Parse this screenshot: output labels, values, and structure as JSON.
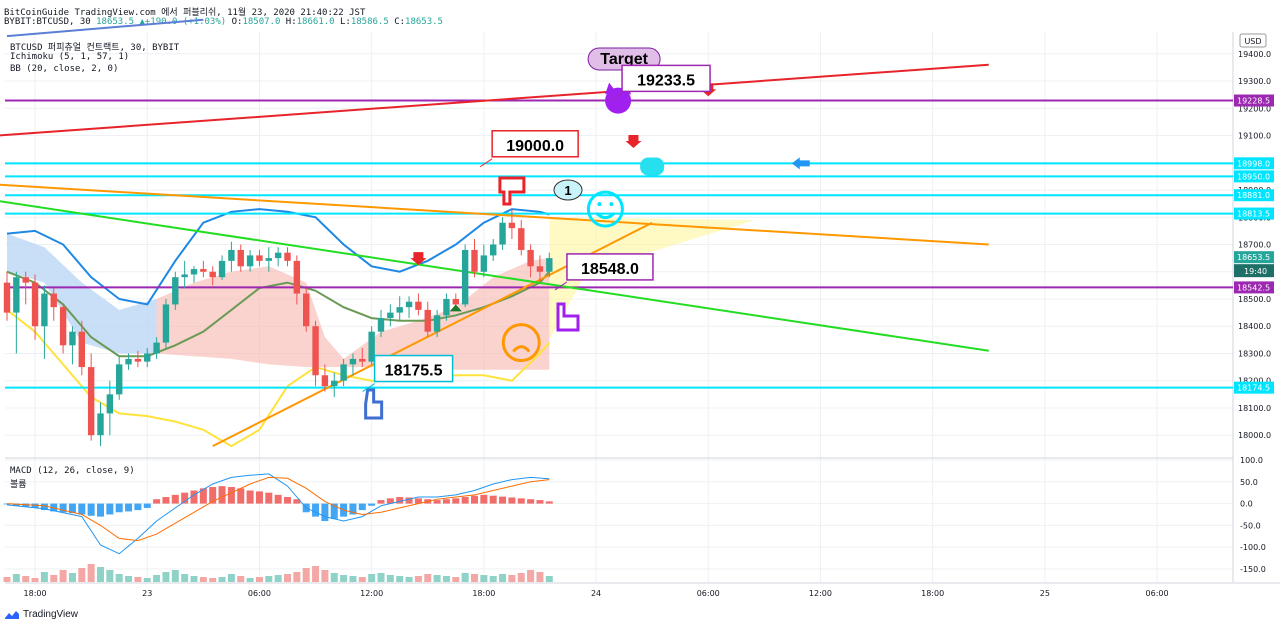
{
  "header": {
    "publish_line": "BitCoinGuide TradingView.com 에서 퍼블리쉬, 11월 23, 2020 21:40:22 JST",
    "symbol_line": "BYBIT:BTCUSD, 30",
    "change": "18653.5 ▲+190.0 (+1.03%)",
    "ohlc": [
      {
        "label": "O:",
        "value": "18507.0"
      },
      {
        "label": "H:",
        "value": "18661.0"
      },
      {
        "label": "L:",
        "value": "18586.5"
      },
      {
        "label": "C:",
        "value": "18653.5"
      }
    ]
  },
  "indicators": {
    "main_title": "BTCUSD 퍼피츄얼 컨트랙트, 30, BYBIT",
    "ichimoku": "Ichimoku (5, 1, 57, 1)",
    "bb": "BB (20, close, 2, 0)",
    "macd": "MACD (12, 26, close, 9)",
    "volume": "볼륨"
  },
  "colors": {
    "up": "#26a69a",
    "down": "#ef5350",
    "red_line": "#e8232a",
    "purple_line": "#9c27b0",
    "cyan_line": "#00e5ff",
    "orange_line": "#ff9800",
    "green_line": "#22dd22",
    "bb_blue": "#1e88e5",
    "bb_yellow": "#ffe23a",
    "bb_mid": "#6a9a55",
    "macd_line": "#2196f3",
    "signal_line": "#ff6d00"
  },
  "chart_data": {
    "type": "candlestick",
    "currency_label": "USD",
    "price_axis": {
      "range": [
        17920,
        19480
      ],
      "ticks": [
        18000.0,
        18100.0,
        18200.0,
        18300.0,
        18400.0,
        18500.0,
        18600.0,
        18700.0,
        18800.0,
        18900.0,
        19000.0,
        19100.0,
        19200.0,
        19300.0,
        19400.0
      ]
    },
    "macd_axis": {
      "range": [
        -180,
        100
      ],
      "ticks": [
        "100.0",
        "50.0",
        "0.0",
        "-50.0",
        "-100.0",
        "-150.0"
      ]
    },
    "time_axis": {
      "labels": [
        {
          "bar": 3,
          "text": "18:00"
        },
        {
          "bar": 15,
          "text": "23"
        },
        {
          "bar": 27,
          "text": "06:00"
        },
        {
          "bar": 39,
          "text": "12:00"
        },
        {
          "bar": 51,
          "text": "18:00"
        },
        {
          "bar": 63,
          "text": "24"
        },
        {
          "bar": 75,
          "text": "06:00"
        },
        {
          "bar": 87,
          "text": "12:00"
        },
        {
          "bar": 99,
          "text": "18:00"
        },
        {
          "bar": 111,
          "text": "25"
        },
        {
          "bar": 123,
          "text": "06:00"
        }
      ]
    },
    "candles": [
      [
        18560,
        18600,
        18420,
        18450
      ],
      [
        18450,
        18600,
        18300,
        18580
      ],
      [
        18580,
        18600,
        18480,
        18560
      ],
      [
        18560,
        18590,
        18350,
        18400
      ],
      [
        18400,
        18550,
        18280,
        18520
      ],
      [
        18520,
        18540,
        18420,
        18470
      ],
      [
        18470,
        18480,
        18300,
        18330
      ],
      [
        18330,
        18400,
        18260,
        18380
      ],
      [
        18380,
        18420,
        18220,
        18250
      ],
      [
        18250,
        18300,
        17980,
        18000
      ],
      [
        18000,
        18120,
        17960,
        18080
      ],
      [
        18080,
        18200,
        18000,
        18150
      ],
      [
        18150,
        18290,
        18130,
        18260
      ],
      [
        18260,
        18300,
        18240,
        18280
      ],
      [
        18280,
        18310,
        18250,
        18270
      ],
      [
        18270,
        18320,
        18250,
        18300
      ],
      [
        18300,
        18360,
        18280,
        18340
      ],
      [
        18340,
        18500,
        18320,
        18480
      ],
      [
        18480,
        18600,
        18460,
        18580
      ],
      [
        18580,
        18640,
        18540,
        18590
      ],
      [
        18590,
        18620,
        18560,
        18610
      ],
      [
        18610,
        18640,
        18580,
        18600
      ],
      [
        18600,
        18620,
        18550,
        18580
      ],
      [
        18580,
        18660,
        18570,
        18640
      ],
      [
        18640,
        18710,
        18600,
        18680
      ],
      [
        18680,
        18700,
        18600,
        18620
      ],
      [
        18620,
        18680,
        18600,
        18660
      ],
      [
        18660,
        18680,
        18620,
        18640
      ],
      [
        18640,
        18690,
        18600,
        18650
      ],
      [
        18650,
        18690,
        18620,
        18670
      ],
      [
        18670,
        18690,
        18620,
        18640
      ],
      [
        18640,
        18660,
        18480,
        18520
      ],
      [
        18520,
        18540,
        18380,
        18400
      ],
      [
        18400,
        18420,
        18180,
        18220
      ],
      [
        18220,
        18260,
        18160,
        18180
      ],
      [
        18180,
        18230,
        18140,
        18200
      ],
      [
        18200,
        18280,
        18180,
        18260
      ],
      [
        18260,
        18300,
        18220,
        18280
      ],
      [
        18280,
        18320,
        18250,
        18270
      ],
      [
        18270,
        18400,
        18260,
        18380
      ],
      [
        18380,
        18460,
        18360,
        18430
      ],
      [
        18430,
        18480,
        18400,
        18450
      ],
      [
        18450,
        18510,
        18420,
        18470
      ],
      [
        18470,
        18510,
        18430,
        18490
      ],
      [
        18490,
        18520,
        18440,
        18460
      ],
      [
        18460,
        18490,
        18360,
        18380
      ],
      [
        18380,
        18460,
        18360,
        18440
      ],
      [
        18440,
        18520,
        18420,
        18500
      ],
      [
        18500,
        18520,
        18460,
        18480
      ],
      [
        18480,
        18700,
        18470,
        18680
      ],
      [
        18680,
        18720,
        18580,
        18600
      ],
      [
        18600,
        18700,
        18580,
        18660
      ],
      [
        18660,
        18720,
        18640,
        18700
      ],
      [
        18700,
        18800,
        18680,
        18780
      ],
      [
        18780,
        18830,
        18720,
        18760
      ],
      [
        18760,
        18790,
        18660,
        18680
      ],
      [
        18680,
        18700,
        18580,
        18620
      ],
      [
        18620,
        18660,
        18560,
        18600
      ],
      [
        18600,
        18670,
        18580,
        18650
      ]
    ],
    "bb_upper": [
      [
        0,
        18740
      ],
      [
        3,
        18750
      ],
      [
        6,
        18700
      ],
      [
        9,
        18580
      ],
      [
        12,
        18500
      ],
      [
        15,
        18480
      ],
      [
        18,
        18640
      ],
      [
        21,
        18780
      ],
      [
        24,
        18820
      ],
      [
        27,
        18830
      ],
      [
        30,
        18820
      ],
      [
        33,
        18800
      ],
      [
        36,
        18700
      ],
      [
        39,
        18620
      ],
      [
        42,
        18600
      ],
      [
        45,
        18640
      ],
      [
        48,
        18700
      ],
      [
        51,
        18780
      ],
      [
        54,
        18830
      ],
      [
        57,
        18820
      ],
      [
        58,
        18810
      ]
    ],
    "bb_middle": [
      [
        0,
        18600
      ],
      [
        3,
        18560
      ],
      [
        6,
        18480
      ],
      [
        9,
        18360
      ],
      [
        12,
        18290
      ],
      [
        15,
        18290
      ],
      [
        18,
        18330
      ],
      [
        21,
        18380
      ],
      [
        24,
        18460
      ],
      [
        27,
        18540
      ],
      [
        30,
        18560
      ],
      [
        33,
        18530
      ],
      [
        36,
        18470
      ],
      [
        39,
        18430
      ],
      [
        42,
        18420
      ],
      [
        45,
        18420
      ],
      [
        48,
        18440
      ],
      [
        51,
        18470
      ],
      [
        54,
        18510
      ],
      [
        57,
        18560
      ],
      [
        58,
        18600
      ]
    ],
    "bb_lower": [
      [
        0,
        18460
      ],
      [
        3,
        18380
      ],
      [
        6,
        18260
      ],
      [
        9,
        18140
      ],
      [
        12,
        18080
      ],
      [
        15,
        18070
      ],
      [
        18,
        18050
      ],
      [
        21,
        18020
      ],
      [
        24,
        17960
      ],
      [
        27,
        18020
      ],
      [
        30,
        18180
      ],
      [
        33,
        18250
      ],
      [
        36,
        18220
      ],
      [
        39,
        18200
      ],
      [
        42,
        18200
      ],
      [
        45,
        18210
      ],
      [
        48,
        18220
      ],
      [
        51,
        18220
      ],
      [
        54,
        18200
      ],
      [
        57,
        18300
      ],
      [
        58,
        18340
      ]
    ],
    "cloud_upper": [
      [
        0,
        18740
      ],
      [
        4,
        18690
      ],
      [
        8,
        18560
      ],
      [
        12,
        18460
      ],
      [
        16,
        18500
      ],
      [
        20,
        18560
      ],
      [
        24,
        18600
      ],
      [
        28,
        18620
      ],
      [
        32,
        18560
      ],
      [
        34,
        18360
      ],
      [
        36,
        18280
      ],
      [
        40,
        18380
      ],
      [
        44,
        18420
      ],
      [
        48,
        18470
      ],
      [
        52,
        18580
      ],
      [
        56,
        18640
      ],
      [
        58,
        18650
      ]
    ],
    "cloud_lower": [
      [
        0,
        18600
      ],
      [
        4,
        18560
      ],
      [
        8,
        18340
      ],
      [
        12,
        18300
      ],
      [
        16,
        18300
      ],
      [
        20,
        18290
      ],
      [
        24,
        18280
      ],
      [
        28,
        18260
      ],
      [
        32,
        18250
      ],
      [
        34,
        18250
      ],
      [
        36,
        18250
      ],
      [
        40,
        18250
      ],
      [
        44,
        18250
      ],
      [
        48,
        18240
      ],
      [
        52,
        18240
      ],
      [
        56,
        18240
      ],
      [
        58,
        18240
      ]
    ],
    "horizontal_levels": [
      {
        "value": 19228.5,
        "label": "19228.5",
        "color": "#9c27b0"
      },
      {
        "value": 18998.0,
        "label": "18998.0",
        "color": "#00e5ff"
      },
      {
        "value": 18950.0,
        "label": "18950.0",
        "color": "#00e5ff"
      },
      {
        "value": 18881.0,
        "label": "18881.0",
        "color": "#00e5ff"
      },
      {
        "value": 18813.5,
        "label": "18813.5",
        "color": "#00e5ff"
      },
      {
        "value": 18542.5,
        "label": "18542.5",
        "color": "#9c27b0"
      },
      {
        "value": 18174.5,
        "label": "18174.5",
        "color": "#00e5ff"
      }
    ],
    "last_price": {
      "value": 18653.5,
      "label": "18653.5",
      "countdown": "19:40"
    },
    "trend_lines": [
      {
        "name": "red",
        "from": [
          -1,
          19100
        ],
        "to": [
          105,
          19360
        ]
      },
      {
        "name": "orange-upper",
        "from": [
          -1,
          18920
        ],
        "to": [
          105,
          18700
        ]
      },
      {
        "name": "orange-support",
        "from": [
          22,
          17960
        ],
        "to": [
          69,
          18780
        ]
      },
      {
        "name": "green",
        "from": [
          -1,
          18860
        ],
        "to": [
          105,
          18310
        ]
      }
    ],
    "callouts": [
      {
        "text": "19233.5",
        "bar": 63,
        "price": 19240
      },
      {
        "text": "19000.0",
        "bar": 49,
        "price": 19000
      },
      {
        "text": "18548.0",
        "bar": 57,
        "price": 18548
      },
      {
        "text": "18175.5",
        "bar": 36,
        "price": 18175
      }
    ],
    "annotations": {
      "target_label": "Target",
      "bubble_label": "1"
    },
    "macd": [
      [
        0,
        -3
      ],
      [
        4,
        -12
      ],
      [
        8,
        -30
      ],
      [
        10,
        -95
      ],
      [
        12,
        -115
      ],
      [
        14,
        -80
      ],
      [
        16,
        -40
      ],
      [
        18,
        -10
      ],
      [
        20,
        20
      ],
      [
        22,
        45
      ],
      [
        24,
        60
      ],
      [
        26,
        65
      ],
      [
        28,
        68
      ],
      [
        30,
        40
      ],
      [
        32,
        -10
      ],
      [
        34,
        -30
      ],
      [
        36,
        -40
      ],
      [
        38,
        -30
      ],
      [
        40,
        -5
      ],
      [
        42,
        5
      ],
      [
        44,
        15
      ],
      [
        46,
        15
      ],
      [
        48,
        20
      ],
      [
        50,
        30
      ],
      [
        52,
        45
      ],
      [
        54,
        55
      ],
      [
        56,
        60
      ],
      [
        58,
        57
      ]
    ],
    "signal": [
      [
        0,
        0
      ],
      [
        4,
        -5
      ],
      [
        8,
        -25
      ],
      [
        10,
        -50
      ],
      [
        12,
        -80
      ],
      [
        14,
        -85
      ],
      [
        16,
        -70
      ],
      [
        18,
        -45
      ],
      [
        20,
        -20
      ],
      [
        22,
        5
      ],
      [
        24,
        25
      ],
      [
        26,
        45
      ],
      [
        28,
        60
      ],
      [
        30,
        58
      ],
      [
        32,
        35
      ],
      [
        34,
        5
      ],
      [
        36,
        -15
      ],
      [
        38,
        -25
      ],
      [
        40,
        -20
      ],
      [
        42,
        -10
      ],
      [
        44,
        0
      ],
      [
        46,
        10
      ],
      [
        48,
        15
      ],
      [
        50,
        20
      ],
      [
        52,
        30
      ],
      [
        54,
        40
      ],
      [
        56,
        50
      ],
      [
        58,
        55
      ]
    ],
    "histogram": [
      -2,
      -5,
      -8,
      -10,
      -15,
      -18,
      -20,
      -22,
      -25,
      -28,
      -30,
      -25,
      -20,
      -18,
      -15,
      -10,
      10,
      15,
      20,
      25,
      30,
      35,
      38,
      40,
      38,
      35,
      30,
      28,
      25,
      20,
      15,
      10,
      -20,
      -30,
      -40,
      -35,
      -30,
      -25,
      -15,
      -5,
      8,
      12,
      15,
      14,
      12,
      10,
      8,
      10,
      12,
      15,
      18,
      20,
      18,
      16,
      14,
      12,
      10,
      8,
      5
    ],
    "volume": [
      5,
      8,
      6,
      4,
      10,
      7,
      12,
      9,
      14,
      18,
      15,
      12,
      8,
      6,
      5,
      4,
      7,
      10,
      12,
      8,
      6,
      5,
      4,
      5,
      8,
      6,
      4,
      5,
      6,
      7,
      8,
      10,
      14,
      16,
      12,
      9,
      7,
      6,
      5,
      8,
      9,
      7,
      6,
      5,
      6,
      8,
      7,
      6,
      5,
      9,
      8,
      7,
      6,
      8,
      7,
      9,
      12,
      10,
      6
    ]
  },
  "footer": {
    "brand": "TradingView"
  }
}
